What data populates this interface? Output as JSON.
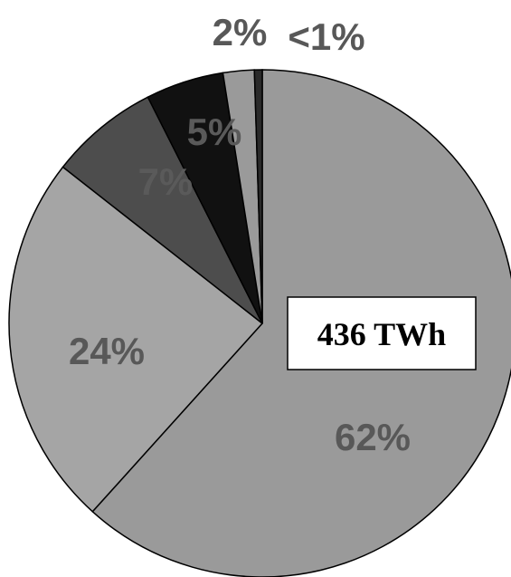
{
  "chart_data": {
    "type": "pie",
    "center_label": "436 TWh",
    "slices": [
      {
        "label": "62%",
        "value": 62,
        "color": "#9a9a9a",
        "label_color": "#585858"
      },
      {
        "label": "24%",
        "value": 24,
        "color": "#a5a5a5",
        "label_color": "#585858"
      },
      {
        "label": "7%",
        "value": 7,
        "color": "#4d4d4d",
        "label_color": "#5a5a5a"
      },
      {
        "label": "5%",
        "value": 5,
        "color": "#111111",
        "label_color": "#5a5a5a"
      },
      {
        "label": "2%",
        "value": 2,
        "color": "#9a9a9a",
        "label_color": "#585858"
      },
      {
        "label": "<1%",
        "value": 0.5,
        "color": "#2a2a2a",
        "label_color": "#585858"
      }
    ]
  }
}
